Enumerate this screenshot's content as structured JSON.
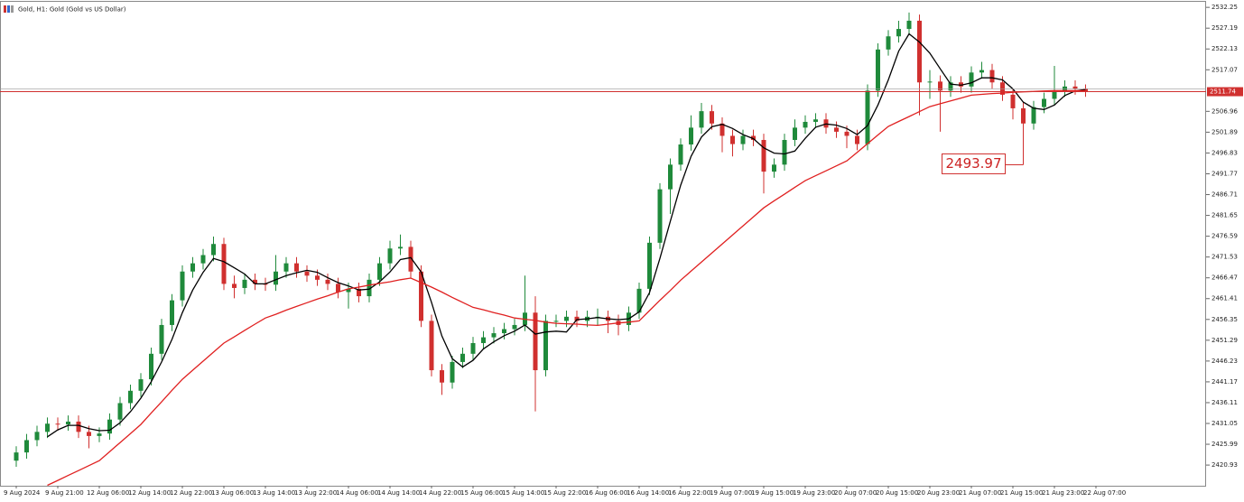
{
  "chart_data": {
    "type": "candlestick",
    "title": "Gold, H1: Gold (Gold vs US Dollar)",
    "categories": [
      "9 Aug 2024",
      null,
      null,
      null,
      "9 Aug 21:00",
      null,
      null,
      null,
      "12 Aug 06:00",
      null,
      null,
      null,
      "12 Aug 14:00",
      null,
      null,
      null,
      "12 Aug 22:00",
      null,
      null,
      null,
      "13 Aug 06:00",
      null,
      null,
      null,
      "13 Aug 14:00",
      null,
      null,
      null,
      "13 Aug 22:00",
      null,
      null,
      null,
      "14 Aug 06:00",
      null,
      null,
      null,
      "14 Aug 14:00",
      null,
      null,
      null,
      "14 Aug 22:00",
      null,
      null,
      null,
      "15 Aug 06:00",
      null,
      null,
      null,
      "15 Aug 14:00",
      null,
      null,
      null,
      "15 Aug 22:00",
      null,
      null,
      null,
      "16 Aug 06:00",
      null,
      null,
      null,
      "16 Aug 14:00",
      null,
      null,
      null,
      "16 Aug 22:00",
      null,
      null,
      null,
      "19 Aug 07:00",
      null,
      null,
      null,
      "19 Aug 15:00",
      null,
      null,
      null,
      "19 Aug 23:00",
      null,
      null,
      null,
      "20 Aug 07:00",
      null,
      null,
      null,
      "20 Aug 15:00",
      null,
      null,
      null,
      "20 Aug 23:00",
      null,
      null,
      null,
      "21 Aug 07:00",
      null,
      null,
      null,
      "21 Aug 15:00",
      null,
      null,
      null,
      "21 Aug 23:00",
      null,
      null,
      null,
      "22 Aug 07:00"
    ],
    "candles": {
      "up_color": "#1f8a3b",
      "down_color": "#d0302f",
      "open": [
        2422,
        2424,
        2427,
        2429,
        2431,
        2430.8,
        2431.5,
        2429,
        2428,
        2428.6,
        2432,
        2436,
        2439,
        2441.8,
        2448,
        2455,
        2461,
        2468,
        2470,
        2472,
        2474.7,
        2465,
        2464,
        2466,
        2465,
        2464.8,
        2468,
        2470,
        2468,
        2467,
        2466,
        2465,
        2463,
        2463.8,
        2462,
        2466,
        2470,
        2473.6,
        2474,
        2468,
        2456,
        2444,
        2441,
        2446,
        2448,
        2450.6,
        2452,
        2453,
        2454,
        2455,
        2458,
        2444,
        2456,
        2456,
        2457,
        2456,
        2457,
        2457,
        2456,
        2455,
        2458,
        2463.8,
        2475,
        2488,
        2494,
        2498.9,
        2503,
        2507,
        2504,
        2501,
        2499,
        2501,
        2500,
        2492.3,
        2494,
        2500,
        2503,
        2504.4,
        2505,
        2503,
        2502,
        2501,
        2499,
        2512,
        2522,
        2525.2,
        2527,
        2529,
        2514,
        2514.2,
        2512,
        2514,
        2513,
        2516.4,
        2517,
        2514,
        2511,
        2507.7,
        2504,
        2508,
        2510,
        2512,
        2513,
        2512.5,
        null
      ],
      "high": [
        2425.5,
        2428.5,
        2430.5,
        2432.5,
        2432.5,
        2433,
        2433,
        2430.5,
        2430.1,
        2433.5,
        2437.5,
        2440.5,
        2443.3,
        2449.5,
        2456.5,
        2462.5,
        2469.5,
        2471.5,
        2473.5,
        2476.5,
        2476.2,
        2467,
        2467.5,
        2467.5,
        2466.5,
        2472,
        2471.5,
        2471.5,
        2469.5,
        2468.5,
        2467.5,
        2466.5,
        2465.3,
        2465.3,
        2467.5,
        2471.5,
        2475.5,
        2477,
        2475.5,
        2469.5,
        2457.5,
        2445.5,
        2447.5,
        2449.5,
        2452.1,
        2453.5,
        2454.5,
        2455.5,
        2456.5,
        2467,
        2462,
        2457.5,
        2457.5,
        2458.5,
        2458.5,
        2458.5,
        2459,
        2458.5,
        2457.5,
        2459.5,
        2465.3,
        2476.5,
        2489.5,
        2495.5,
        2500.4,
        2506,
        2509,
        2508.5,
        2505.5,
        2502.5,
        2502.5,
        2502.5,
        2501.5,
        2495.5,
        2501.5,
        2505,
        2506,
        2506.5,
        2506.5,
        2504.5,
        2503.5,
        2502.5,
        2513.5,
        2523.5,
        2526.7,
        2529,
        2531,
        2530.5,
        2517,
        2515.7,
        2515.5,
        2515.5,
        2517.9,
        2519,
        2518.5,
        2515.5,
        2512.5,
        2509.2,
        2509.5,
        2511.5,
        2518,
        2514.5,
        2514.5,
        2513.5,
        null
      ],
      "low": [
        2420.5,
        2422.5,
        2425.5,
        2427.5,
        2429.3,
        2429.3,
        2427.5,
        2425,
        2426.5,
        2427.1,
        2430.5,
        2434.5,
        2437.5,
        2440.3,
        2446.5,
        2453.5,
        2459.5,
        2466.5,
        2468.5,
        2470.5,
        2463.5,
        2461.5,
        2462.5,
        2463.5,
        2463.3,
        2463.3,
        2466.5,
        2466.5,
        2465.5,
        2464.5,
        2463.5,
        2461.5,
        2459,
        2460.5,
        2460.5,
        2464.5,
        2468.5,
        2472,
        2466.5,
        2454.5,
        2442.5,
        2438,
        2439.5,
        2444.5,
        2446.5,
        2449.1,
        2450.5,
        2451.5,
        2452.5,
        2453.5,
        2434,
        2442.5,
        2454.5,
        2454.5,
        2454.5,
        2454.5,
        2455,
        2453,
        2452.5,
        2453.5,
        2456.5,
        2462.3,
        2473.5,
        2482,
        2492.5,
        2497.4,
        2501.5,
        2502.5,
        2497,
        2496,
        2497.5,
        2498.5,
        2487,
        2490.8,
        2492.5,
        2498.5,
        2501.5,
        2502.9,
        2501.5,
        2500.5,
        2498,
        2497.5,
        2497.5,
        2510.5,
        2520.5,
        2523.7,
        2525.5,
        2506,
        2510,
        2502,
        2510.5,
        2511.5,
        2511.5,
        2514.9,
        2512.5,
        2509.5,
        2505,
        2493.97,
        2502.5,
        2506.5,
        2508.5,
        2510.5,
        2511,
        2510.5,
        null
      ],
      "close": [
        2424,
        2427,
        2429,
        2431,
        2430.8,
        2431.5,
        2429,
        2428,
        2428.6,
        2432,
        2436,
        2439,
        2441.8,
        2448,
        2455,
        2461,
        2468,
        2470,
        2472,
        2474.7,
        2465,
        2464,
        2466,
        2465,
        2464.8,
        2468,
        2470,
        2468,
        2467,
        2466,
        2465,
        2463,
        2463.8,
        2462,
        2466,
        2470,
        2473.6,
        2474,
        2468,
        2456,
        2444,
        2441,
        2446,
        2448,
        2450.6,
        2452,
        2453,
        2454,
        2455,
        2458,
        2444,
        2456,
        2456,
        2457,
        2456,
        2457,
        2457,
        2456,
        2455,
        2458,
        2463.8,
        2475,
        2488,
        2494,
        2498.9,
        2503,
        2507,
        2504,
        2501,
        2499,
        2501,
        2500,
        2492.3,
        2494,
        2500,
        2503,
        2504.4,
        2505,
        2503,
        2502,
        2501,
        2499,
        2512,
        2522,
        2525.2,
        2527,
        2529,
        2514,
        2514.2,
        2512,
        2514,
        2513,
        2516.4,
        2517,
        2514,
        2511,
        2507.7,
        2504,
        2508,
        2510,
        2512,
        2513,
        2512.5,
        2511.74,
        null
      ]
    },
    "lines": [
      {
        "color": "#000000",
        "values": [
          null,
          null,
          null,
          2427.8,
          2429.5,
          2430.6,
          2430.6,
          2429.8,
          2429.3,
          2429.4,
          2431.2,
          2433.9,
          2437.2,
          2441.2,
          2446,
          2451.5,
          2458,
          2463.5,
          2467.8,
          2471.2,
          2470.4,
          2468.9,
          2467.4,
          2465,
          2465,
          2466,
          2467,
          2467.7,
          2468.3,
          2467.8,
          2466.5,
          2465.3,
          2464.5,
          2463.5,
          2463.7,
          2465.5,
          2467.9,
          2470.9,
          2471.4,
          2467.9,
          2460.5,
          2452.3,
          2446.8,
          2444.8,
          2446.4,
          2449.2,
          2450.9,
          2452.4,
          2453.5,
          2455,
          2452.8,
          2453.3,
          2453.5,
          2453.3,
          2456.3,
          2456.5,
          2456.8,
          2456.5,
          2456.3,
          2456.5,
          2458.2,
          2462.9,
          2471.2,
          2480.2,
          2489,
          2496,
          2500.7,
          2503.2,
          2503.8,
          2502.8,
          2501.3,
          2500.3,
          2498.1,
          2496.8,
          2496.6,
          2497.3,
          2500.4,
          2503.1,
          2503.9,
          2503.6,
          2502.8,
          2501.3,
          2503.5,
          2508.5,
          2514.6,
          2521.6,
          2525.8,
          2523.8,
          2521.1,
          2517.3,
          2513.6,
          2513.3,
          2513.9,
          2515.1,
          2515.1,
          2514.6,
          2512.4,
          2509.2,
          2507.7,
          2507.4,
          2508.5,
          2510.8,
          2511.9,
          2512.3,
          null
        ]
      },
      {
        "color": "#e02020",
        "values": [
          null,
          null,
          null,
          2416,
          2417.2,
          2418.4,
          2419.6,
          2420.8,
          2422,
          2424.2,
          2426.4,
          2428.6,
          2430.8,
          2433.6,
          2436.3,
          2439.1,
          2441.8,
          2444,
          2446.2,
          2448.4,
          2450.6,
          2452.1,
          2453.7,
          2455.2,
          2456.7,
          2457.6,
          2458.6,
          2459.5,
          2460.4,
          2461.3,
          2462.1,
          2463,
          2463.8,
          2464.2,
          2464.7,
          2465.1,
          2465.5,
          2466,
          2466.4,
          2465.3,
          2464.2,
          2463,
          2461.7,
          2460.5,
          2459.3,
          2458.7,
          2458,
          2457.4,
          2456.7,
          2456.4,
          2456.1,
          2455.7,
          2455.4,
          2455.3,
          2455.2,
          2455,
          2454.9,
          2455.2,
          2455.5,
          2455.7,
          2456,
          2458.5,
          2461,
          2463.4,
          2465.9,
          2468.1,
          2470.3,
          2472.5,
          2474.7,
          2476.9,
          2479.1,
          2481.3,
          2483.5,
          2485.2,
          2486.8,
          2488.5,
          2490.1,
          2491.3,
          2492.5,
          2493.7,
          2494.9,
          2497,
          2499.1,
          2501.2,
          2503.3,
          2504.5,
          2505.7,
          2506.9,
          2508.1,
          2508.8,
          2509.5,
          2510.2,
          2510.9,
          2511.1,
          2511.3,
          2511.4,
          2511.6,
          2511.7,
          2511.8,
          2511.9,
          2512,
          2512,
          2512,
          2512,
          null
        ]
      }
    ],
    "price_line_color": "#d0302f",
    "ylim": [
      2415.9,
      2533.6
    ],
    "yticks": [
      2532.25,
      2527.19,
      2522.13,
      2517.07,
      2506.96,
      2501.89,
      2496.83,
      2491.77,
      2486.71,
      2481.65,
      2476.59,
      2471.53,
      2466.47,
      2461.41,
      2456.35,
      2451.29,
      2446.23,
      2441.17,
      2436.11,
      2431.05,
      2425.99,
      2420.93
    ],
    "grid": false
  }
}
